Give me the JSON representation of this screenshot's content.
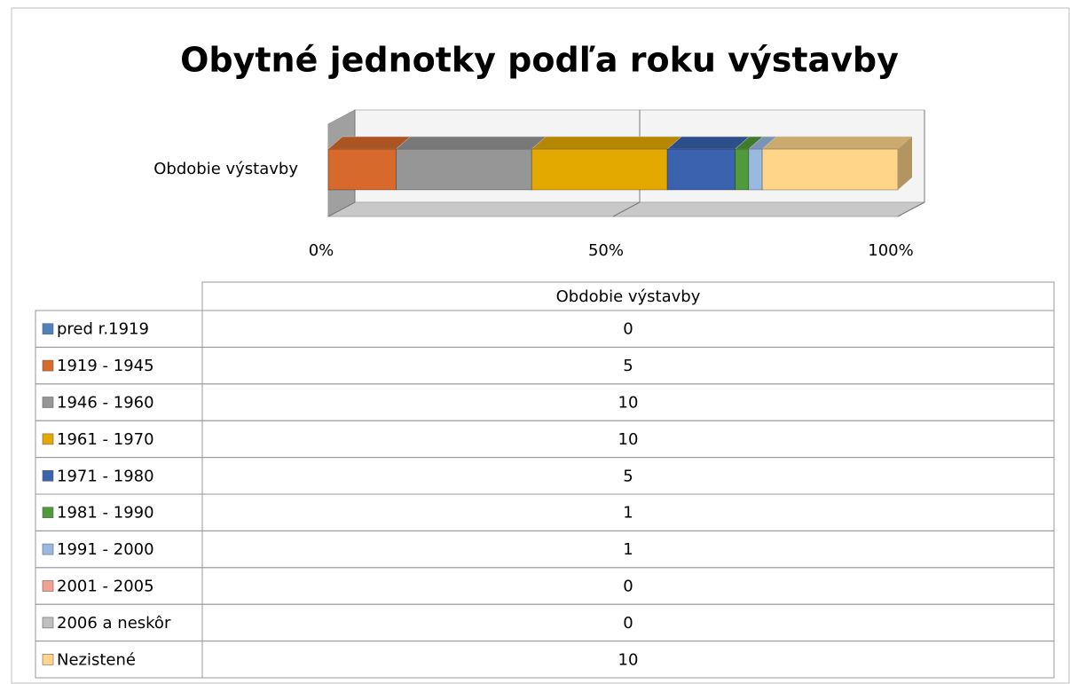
{
  "chart_data": {
    "type": "bar",
    "stacked": "percent",
    "orientation": "horizontal",
    "title": "Obytné jednotky podľa roku výstavby",
    "categories": [
      "Obdobie výstavby"
    ],
    "series": [
      {
        "name": "pred r.1919",
        "color": "#4f81bd",
        "values": [
          0
        ]
      },
      {
        "name": "1919 - 1945",
        "color": "#d8692c",
        "values": [
          5
        ]
      },
      {
        "name": "1946 - 1960",
        "color": "#969696",
        "values": [
          10
        ]
      },
      {
        "name": "1961 - 1970",
        "color": "#e4a900",
        "values": [
          10
        ]
      },
      {
        "name": "1971 - 1980",
        "color": "#3a62ae",
        "values": [
          5
        ]
      },
      {
        "name": "1981 - 1990",
        "color": "#4f9a3a",
        "values": [
          1
        ]
      },
      {
        "name": "1991 - 2000",
        "color": "#9ab9e1",
        "values": [
          1
        ]
      },
      {
        "name": "2001 - 2005",
        "color": "#f2a090",
        "values": [
          0
        ]
      },
      {
        "name": "2006 a neskôr",
        "color": "#bfbfbf",
        "values": [
          0
        ]
      },
      {
        "name": "Nezistené",
        "color": "#ffd58a",
        "values": [
          10
        ]
      }
    ],
    "xlim": [
      0,
      100
    ],
    "xticks": [
      {
        "value": 0,
        "label": "0%"
      },
      {
        "value": 50,
        "label": "50%"
      },
      {
        "value": 100,
        "label": "100%"
      }
    ],
    "grid": true,
    "data_table": true
  }
}
